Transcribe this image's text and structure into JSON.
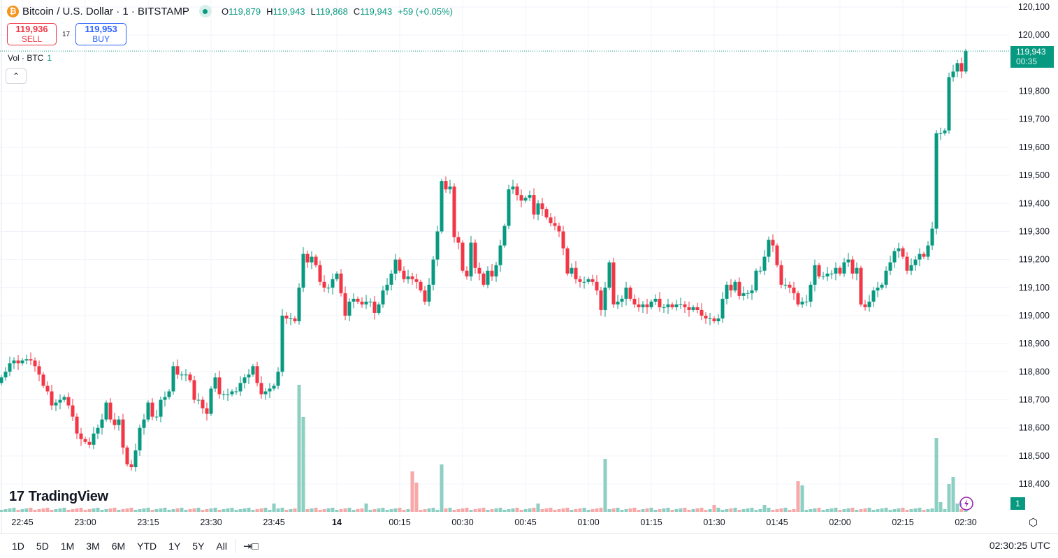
{
  "header": {
    "symbol_icon": "bitcoin-icon",
    "title": "Bitcoin / U.S. Dollar · 1 · BITSTAMP",
    "market_status": "open",
    "ohlc": {
      "o_label": "O",
      "o": "119,879",
      "h_label": "H",
      "h": "119,943",
      "l_label": "L",
      "l": "119,868",
      "c_label": "C",
      "c": "119,943",
      "change": "+59 (+0.05%)"
    }
  },
  "trade": {
    "sell_price": "119,936",
    "sell_label": "SELL",
    "spread": "17",
    "buy_price": "119,953",
    "buy_label": "BUY"
  },
  "volume_legend": {
    "label": "Vol · BTC",
    "value": "1"
  },
  "logo": "TradingView",
  "last_price": {
    "price": "119,943",
    "countdown": "00:35"
  },
  "volume_tag": "1",
  "bottom_toolbar": {
    "ranges": [
      "1D",
      "5D",
      "1M",
      "3M",
      "6M",
      "YTD",
      "1Y",
      "5Y",
      "All"
    ],
    "clock": "02:30:25 UTC"
  },
  "colors": {
    "up": "#089981",
    "down": "#f23645",
    "vol_up": "#8ccfc3",
    "vol_down": "#f7a8a8",
    "grid": "#f0f3fa"
  },
  "chart_data": {
    "type": "candlestick",
    "title": "Bitcoin / U.S. Dollar · 1 · BITSTAMP",
    "interval_minutes": 1,
    "last_candle_time": "02:30",
    "ylim": [
      118330,
      120120
    ],
    "y_ticks": [
      120100,
      120000,
      119800,
      119700,
      119600,
      119500,
      119400,
      119300,
      119200,
      119100,
      119000,
      118900,
      118800,
      118700,
      118600,
      118500,
      118400
    ],
    "y_tick_labels": [
      "120,100",
      "120,000",
      "119,800",
      "119,700",
      "119,600",
      "119,500",
      "119,400",
      "119,300",
      "119,200",
      "119,100",
      "119,000",
      "118,900",
      "118,800",
      "118,700",
      "118,600",
      "118,500",
      "118,400"
    ],
    "x_ticks": [
      {
        "label": "22:45",
        "minutes_before_last": 225
      },
      {
        "label": "23:00",
        "minutes_before_last": 210
      },
      {
        "label": "23:15",
        "minutes_before_last": 195
      },
      {
        "label": "23:30",
        "minutes_before_last": 180
      },
      {
        "label": "23:45",
        "minutes_before_last": 165
      },
      {
        "label": "14",
        "minutes_before_last": 150,
        "bold": true
      },
      {
        "label": "00:15",
        "minutes_before_last": 135
      },
      {
        "label": "00:30",
        "minutes_before_last": 120
      },
      {
        "label": "00:45",
        "minutes_before_last": 105
      },
      {
        "label": "01:00",
        "minutes_before_last": 90
      },
      {
        "label": "01:15",
        "minutes_before_last": 75
      },
      {
        "label": "01:30",
        "minutes_before_last": 60
      },
      {
        "label": "01:45",
        "minutes_before_last": 45
      },
      {
        "label": "02:00",
        "minutes_before_last": 30
      },
      {
        "label": "02:15",
        "minutes_before_last": 15
      },
      {
        "label": "02:30",
        "minutes_before_last": 0
      }
    ],
    "first_open": 118760,
    "closes": [
      118780,
      118800,
      118830,
      118840,
      118830,
      118840,
      118845,
      118840,
      118820,
      118790,
      118750,
      118730,
      118680,
      118690,
      118700,
      118710,
      118680,
      118640,
      118580,
      118560,
      118550,
      118540,
      118580,
      118600,
      118630,
      118690,
      118630,
      118610,
      118630,
      118530,
      118470,
      118460,
      118520,
      118600,
      118630,
      118690,
      118640,
      118640,
      118700,
      118710,
      118730,
      118820,
      118790,
      118790,
      118790,
      118770,
      118700,
      118700,
      118670,
      118650,
      118740,
      118780,
      118720,
      118720,
      118720,
      118730,
      118730,
      118760,
      118780,
      118790,
      118820,
      118760,
      118720,
      118730,
      118740,
      118750,
      118800,
      119000,
      118990,
      118990,
      118980,
      119100,
      119220,
      119190,
      119210,
      119180,
      119120,
      119100,
      119100,
      119130,
      119150,
      119080,
      119000,
      119050,
      119060,
      119050,
      119040,
      119050,
      119050,
      119010,
      119040,
      119090,
      119110,
      119150,
      119200,
      119160,
      119130,
      119140,
      119130,
      119120,
      119090,
      119050,
      119110,
      119200,
      119300,
      119480,
      119450,
      119460,
      119280,
      119260,
      119160,
      119140,
      119260,
      119170,
      119150,
      119110,
      119160,
      119140,
      119180,
      119250,
      119320,
      119450,
      119460,
      119430,
      119410,
      119420,
      119430,
      119360,
      119400,
      119380,
      119350,
      119330,
      119320,
      119300,
      119240,
      119150,
      119170,
      119130,
      119120,
      119120,
      119130,
      119120,
      119090,
      119020,
      119100,
      119190,
      119040,
      119050,
      119060,
      119100,
      119060,
      119040,
      119030,
      119040,
      119030,
      119050,
      119060,
      119030,
      119030,
      119040,
      119030,
      119040,
      119040,
      119030,
      119020,
      119030,
      119020,
      119000,
      118990,
      118990,
      118980,
      118990,
      119060,
      119110,
      119090,
      119120,
      119070,
      119080,
      119080,
      119090,
      119160,
      119160,
      119210,
      119270,
      119250,
      119180,
      119110,
      119110,
      119100,
      119080,
      119040,
      119050,
      119050,
      119110,
      119180,
      119140,
      119140,
      119150,
      119150,
      119170,
      119150,
      119190,
      119200,
      119150,
      119170,
      119040,
      119030,
      119050,
      119090,
      119100,
      119110,
      119160,
      119190,
      119230,
      119240,
      119210,
      119160,
      119180,
      119200,
      119220,
      119210,
      119250,
      119310,
      119650,
      119650,
      119660,
      119850,
      119870,
      119900,
      119870,
      119943
    ],
    "current_price": 119943,
    "volume_default": 3,
    "volume_spikes": [
      {
        "minutes_before_last": 159,
        "value": 182
      },
      {
        "minutes_before_last": 158,
        "value": 136
      },
      {
        "minutes_before_last": 132,
        "value": 58
      },
      {
        "minutes_before_last": 131,
        "value": 42
      },
      {
        "minutes_before_last": 125,
        "value": 68
      },
      {
        "minutes_before_last": 86,
        "value": 76
      },
      {
        "minutes_before_last": 40,
        "value": 44
      },
      {
        "minutes_before_last": 39,
        "value": 38
      },
      {
        "minutes_before_last": 165,
        "value": 12
      },
      {
        "minutes_before_last": 143,
        "value": 12
      },
      {
        "minutes_before_last": 102,
        "value": 12
      },
      {
        "minutes_before_last": 60,
        "value": 10
      },
      {
        "minutes_before_last": 48,
        "value": 10
      },
      {
        "minutes_before_last": 7,
        "value": 106
      },
      {
        "minutes_before_last": 6,
        "value": 14
      },
      {
        "minutes_before_last": 4,
        "value": 40
      },
      {
        "minutes_before_last": 3,
        "value": 50
      },
      {
        "minutes_before_last": 2,
        "value": 12
      }
    ]
  }
}
